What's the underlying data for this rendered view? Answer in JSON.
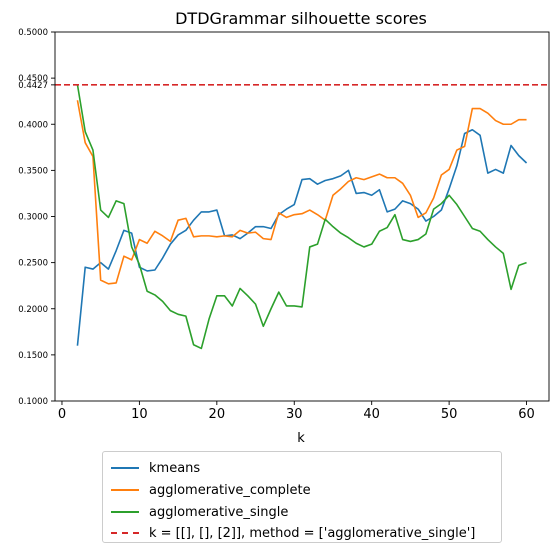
{
  "chart_data": {
    "type": "line",
    "title": "DTDGrammar silhouette scores",
    "xlabel": "k",
    "ylabel": "",
    "xlim": [
      -0.9,
      62.9
    ],
    "ylim": [
      0.1,
      0.5
    ],
    "xticks": [
      0,
      10,
      20,
      30,
      40,
      50,
      60
    ],
    "yticks": [
      0.1,
      0.15,
      0.2,
      0.25,
      0.3,
      0.35,
      0.4,
      0.4427,
      0.45,
      0.5
    ],
    "ytick_labels": [
      "0.1000",
      "0.1500",
      "0.2000",
      "0.2500",
      "0.3000",
      "0.3500",
      "0.4000",
      "0.4427",
      "0.4500",
      "0.5000"
    ],
    "grid": false,
    "legend_position": "below",
    "x": [
      2,
      3,
      4,
      5,
      6,
      7,
      8,
      9,
      10,
      11,
      12,
      13,
      14,
      15,
      16,
      17,
      18,
      19,
      20,
      21,
      22,
      23,
      24,
      25,
      26,
      27,
      28,
      29,
      30,
      31,
      32,
      33,
      34,
      35,
      36,
      37,
      38,
      39,
      40,
      41,
      42,
      43,
      44,
      45,
      46,
      47,
      48,
      49,
      50,
      51,
      52,
      53,
      54,
      55,
      56,
      57,
      58,
      59,
      60
    ],
    "series": [
      {
        "name": "kmeans",
        "color": "#1f77b4",
        "values": [
          0.16,
          0.245,
          0.243,
          0.25,
          0.243,
          0.263,
          0.285,
          0.282,
          0.245,
          0.241,
          0.242,
          0.255,
          0.27,
          0.28,
          0.285,
          0.296,
          0.305,
          0.305,
          0.307,
          0.279,
          0.28,
          0.276,
          0.282,
          0.289,
          0.289,
          0.287,
          0.302,
          0.308,
          0.313,
          0.34,
          0.341,
          0.335,
          0.339,
          0.341,
          0.344,
          0.35,
          0.325,
          0.326,
          0.323,
          0.329,
          0.305,
          0.308,
          0.317,
          0.314,
          0.308,
          0.295,
          0.3,
          0.307,
          0.33,
          0.355,
          0.39,
          0.394,
          0.388,
          0.347,
          0.351,
          0.347,
          0.377,
          0.366,
          0.358
        ]
      },
      {
        "name": "agglomerative_complete",
        "color": "#ff7f0e",
        "values": [
          0.426,
          0.38,
          0.365,
          0.231,
          0.227,
          0.228,
          0.257,
          0.253,
          0.275,
          0.271,
          0.284,
          0.279,
          0.273,
          0.296,
          0.298,
          0.278,
          0.279,
          0.279,
          0.278,
          0.279,
          0.278,
          0.285,
          0.282,
          0.283,
          0.276,
          0.275,
          0.304,
          0.299,
          0.302,
          0.303,
          0.307,
          0.302,
          0.296,
          0.323,
          0.33,
          0.338,
          0.342,
          0.34,
          0.343,
          0.346,
          0.342,
          0.342,
          0.336,
          0.323,
          0.299,
          0.304,
          0.32,
          0.345,
          0.351,
          0.372,
          0.376,
          0.417,
          0.417,
          0.412,
          0.404,
          0.4,
          0.4,
          0.405,
          0.405
        ]
      },
      {
        "name": "agglomerative_single",
        "color": "#2ca02c",
        "values": [
          0.443,
          0.392,
          0.372,
          0.307,
          0.299,
          0.317,
          0.314,
          0.267,
          0.248,
          0.219,
          0.215,
          0.208,
          0.198,
          0.194,
          0.192,
          0.161,
          0.157,
          0.189,
          0.214,
          0.214,
          0.203,
          0.222,
          0.214,
          0.205,
          0.181,
          0.2,
          0.218,
          0.203,
          0.203,
          0.202,
          0.267,
          0.27,
          0.297,
          0.289,
          0.282,
          0.277,
          0.271,
          0.267,
          0.27,
          0.284,
          0.288,
          0.302,
          0.275,
          0.273,
          0.275,
          0.281,
          0.308,
          0.314,
          0.323,
          0.313,
          0.3,
          0.287,
          0.284,
          0.275,
          0.267,
          0.26,
          0.221,
          0.247,
          0.25
        ]
      }
    ],
    "hline": {
      "y": 0.4427,
      "color": "#d62728",
      "label": "k = [[], [], [2]], method = ['agglomerative_single']"
    }
  }
}
